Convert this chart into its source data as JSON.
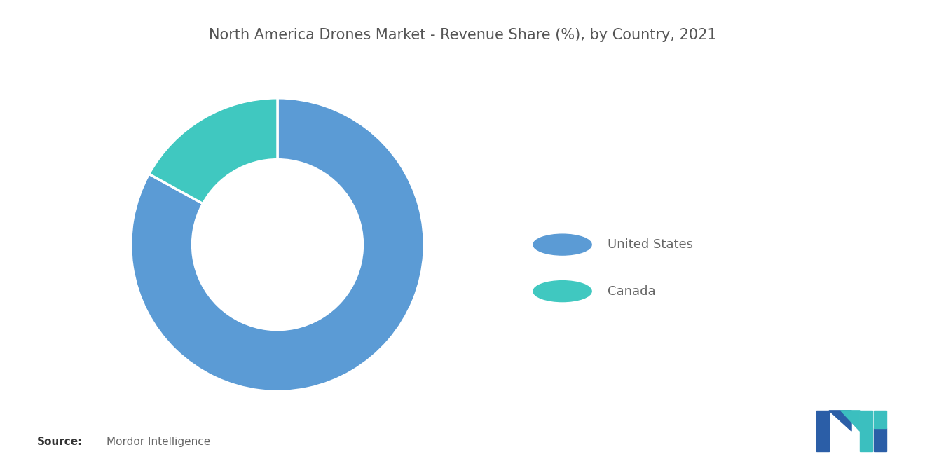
{
  "title": "North America Drones Market - Revenue Share (%), by Country, 2021",
  "title_fontsize": 15,
  "title_color": "#555555",
  "background_color": "#ffffff",
  "labels": [
    "United States",
    "Canada"
  ],
  "values": [
    83,
    17
  ],
  "colors": [
    "#5B9BD5",
    "#40C8C0"
  ],
  "donut_width": 0.42,
  "source_label": "Source:",
  "source_detail": "Mordor Intelligence",
  "legend_fontsize": 13,
  "startangle": 90,
  "counterclock": false
}
